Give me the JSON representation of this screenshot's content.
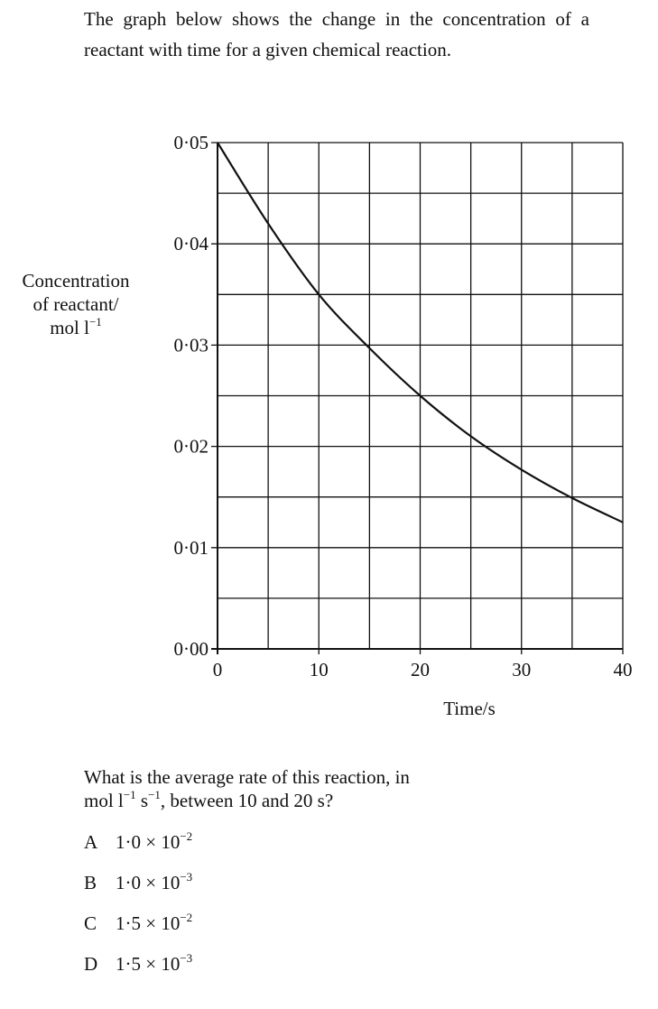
{
  "intro": "The graph below shows the change in the concentration of a reactant with time for a given chemical reaction.",
  "chart_data": {
    "type": "line",
    "title": "",
    "xlabel": "Time/s",
    "ylabel": {
      "line1": "Concentration",
      "line2": "of reactant/",
      "unit": "mol l",
      "unit_sup": "−1"
    },
    "xlim": [
      0,
      40
    ],
    "ylim": [
      0,
      0.05
    ],
    "x_ticks": [
      "0",
      "10",
      "20",
      "30",
      "40"
    ],
    "x_tick_values": [
      0,
      10,
      20,
      30,
      40
    ],
    "y_ticks": [
      "0·00",
      "0·01",
      "0·02",
      "0·03",
      "0·04",
      "0·05"
    ],
    "y_tick_values": [
      0,
      0.01,
      0.02,
      0.03,
      0.04,
      0.05
    ],
    "grid": true,
    "grid_step_x": 5,
    "grid_step_y": 0.005,
    "series": [
      {
        "x": [
          0,
          5,
          10,
          15,
          20,
          25,
          30,
          35,
          40
        ],
        "y": [
          0.05,
          0.042,
          0.035,
          0.0297,
          0.025,
          0.021,
          0.0177,
          0.0149,
          0.0125
        ]
      }
    ]
  },
  "question": {
    "line1": "What is the average rate of this reaction, in",
    "unit_a": "mol l",
    "sup_a": "−1",
    "unit_b": " s",
    "sup_b": "−1",
    "rest": ", between 10 and 20 s?"
  },
  "options": [
    {
      "letter": "A",
      "mantissa": "1·0 × 10",
      "exp": "−2"
    },
    {
      "letter": "B",
      "mantissa": "1·0 × 10",
      "exp": "−3"
    },
    {
      "letter": "C",
      "mantissa": "1·5 × 10",
      "exp": "−2"
    },
    {
      "letter": "D",
      "mantissa": "1·5 × 10",
      "exp": "−3"
    }
  ]
}
